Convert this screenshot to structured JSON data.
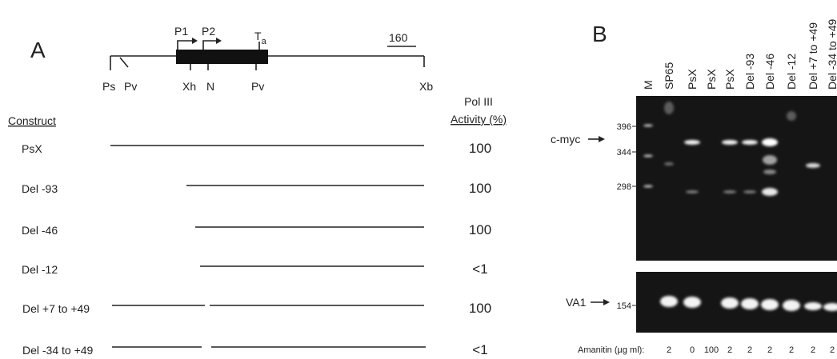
{
  "panel_a": {
    "label": "A",
    "map": {
      "promoters": [
        "P1",
        "P2"
      ],
      "terminator": "T",
      "terminator_subscript": "a",
      "scale": "160",
      "sites": [
        "Ps",
        "Pv",
        "Xh",
        "N",
        "Pv",
        "Xb"
      ]
    },
    "table": {
      "header": {
        "construct": "Construct",
        "activity": [
          "Pol III",
          "Activity (%)"
        ]
      },
      "rows": [
        [
          "PsX",
          "100"
        ],
        [
          "Del -93",
          "100"
        ],
        [
          "Del -46",
          "100"
        ],
        [
          "Del -12",
          "<1"
        ],
        [
          "Del +7 to +49",
          "100"
        ],
        [
          "Del -34 to +49",
          "<1"
        ]
      ]
    }
  },
  "panel_b": {
    "label": "B",
    "lanes": [
      "M",
      "SP65",
      "PsX",
      "PsX",
      "PsX",
      "Del -93",
      "Del -46",
      "Del -12",
      "Del +7 to +49",
      "Del -34 to +49"
    ],
    "markers": [
      "396",
      "344",
      "298",
      "154"
    ],
    "arrows": [
      "c-myc",
      "VA1"
    ],
    "amanitin": {
      "label": "Amanitin (µg ml):",
      "values": [
        "2",
        "0",
        "100",
        "2",
        "2",
        "2",
        "2",
        "2",
        "2"
      ]
    }
  }
}
